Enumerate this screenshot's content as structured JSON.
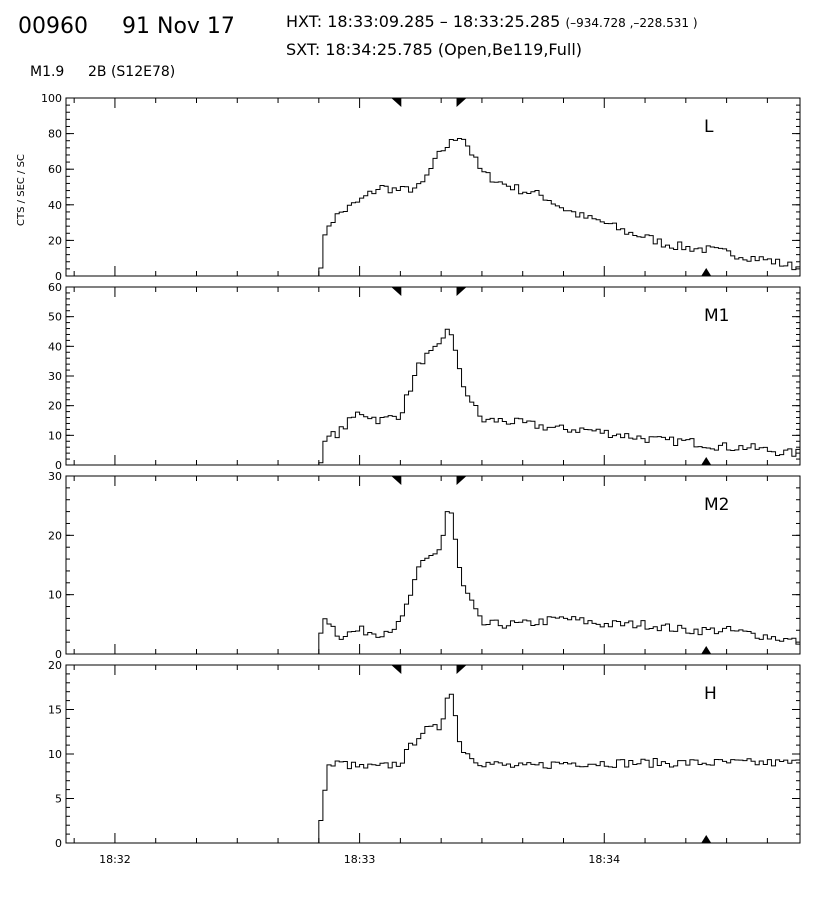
{
  "header": {
    "event_id": "00960",
    "date": "91 Nov 17",
    "hxt_label": "HXT:",
    "hxt_range": "18:33:09.285 – 18:33:25.285",
    "hxt_coords": "(–934.728 ,–228.531 )",
    "sxt_label": "SXT:",
    "sxt_time": "18:34:25.785",
    "sxt_config": "(Open,Be119,Full)",
    "flare_class": "M1.9",
    "flare_region": "2B (S12E78)"
  },
  "chart_data": [
    {
      "type": "line",
      "panel": "L",
      "ylabel": "CTS / SEC / SC",
      "ylim": [
        0,
        100
      ],
      "yticks": [
        0,
        20,
        40,
        60,
        80,
        100
      ],
      "xlim": [
        "18:31:48",
        "18:34:48"
      ],
      "x": [
        "18:32:50",
        "18:32:52",
        "18:32:55",
        "18:33:00",
        "18:33:05",
        "18:33:10",
        "18:33:15",
        "18:33:20",
        "18:33:25",
        "18:33:30",
        "18:33:35",
        "18:33:40",
        "18:33:45",
        "18:33:50",
        "18:33:55",
        "18:34:00",
        "18:34:05",
        "18:34:10",
        "18:34:15",
        "18:34:20",
        "18:34:25",
        "18:34:30",
        "18:34:35",
        "18:34:40",
        "18:34:45",
        "18:34:48"
      ],
      "y": [
        0,
        28,
        35,
        42,
        50,
        48,
        50,
        70,
        80,
        58,
        52,
        48,
        45,
        38,
        33,
        30,
        25,
        22,
        18,
        16,
        15,
        13,
        11,
        9,
        6,
        5
      ]
    },
    {
      "type": "line",
      "panel": "M1",
      "ylim": [
        0,
        60
      ],
      "yticks": [
        0,
        10,
        20,
        30,
        40,
        50,
        60
      ],
      "xlim": [
        "18:31:48",
        "18:34:48"
      ],
      "x": [
        "18:32:50",
        "18:32:52",
        "18:32:55",
        "18:33:00",
        "18:33:05",
        "18:33:10",
        "18:33:15",
        "18:33:20",
        "18:33:22",
        "18:33:25",
        "18:33:30",
        "18:33:35",
        "18:33:40",
        "18:33:45",
        "18:33:50",
        "18:33:55",
        "18:34:00",
        "18:34:05",
        "18:34:10",
        "18:34:15",
        "18:34:20",
        "18:34:25",
        "18:34:30",
        "18:34:35",
        "18:34:40",
        "18:34:45",
        "18:34:48"
      ],
      "y": [
        0,
        9,
        11,
        18,
        15,
        17,
        35,
        40,
        48,
        28,
        15,
        15,
        14,
        13,
        12,
        12,
        11,
        10,
        9,
        8,
        8,
        7,
        6,
        6,
        5,
        4,
        4
      ]
    },
    {
      "type": "line",
      "panel": "M2",
      "ylim": [
        0,
        30
      ],
      "yticks": [
        0,
        10,
        20,
        30
      ],
      "xlim": [
        "18:31:48",
        "18:34:48"
      ],
      "x": [
        "18:32:50",
        "18:32:51",
        "18:32:55",
        "18:33:00",
        "18:33:05",
        "18:33:10",
        "18:33:15",
        "18:33:20",
        "18:33:22",
        "18:33:25",
        "18:33:30",
        "18:33:40",
        "18:33:50",
        "18:34:00",
        "18:34:10",
        "18:34:20",
        "18:34:30",
        "18:34:40",
        "18:34:48"
      ],
      "y": [
        0,
        7,
        3,
        4,
        3.5,
        5,
        15,
        18,
        26,
        12,
        5,
        5,
        6,
        5,
        5,
        4,
        4,
        3,
        2
      ]
    },
    {
      "type": "line",
      "panel": "H",
      "ylim": [
        0,
        20
      ],
      "yticks": [
        0,
        5,
        10,
        15,
        20
      ],
      "xlim": [
        "18:31:48",
        "18:34:48"
      ],
      "xticks": [
        "18:32",
        "18:33",
        "18:34"
      ],
      "x": [
        "18:32:50",
        "18:32:52",
        "18:32:55",
        "18:33:00",
        "18:33:05",
        "18:33:10",
        "18:33:15",
        "18:33:20",
        "18:33:22",
        "18:33:25",
        "18:33:30",
        "18:33:40",
        "18:33:50",
        "18:34:00",
        "18:34:10",
        "18:34:20",
        "18:34:30",
        "18:34:40",
        "18:34:48"
      ],
      "y": [
        0,
        8.5,
        9,
        8.5,
        8.5,
        9,
        12.5,
        13,
        18,
        10.5,
        9,
        8.5,
        9,
        9,
        9,
        9,
        9,
        9,
        9
      ]
    }
  ],
  "markers": {
    "hxt_start": "18:33:09",
    "hxt_end": "18:33:25",
    "sxt_time": "18:34:25"
  }
}
